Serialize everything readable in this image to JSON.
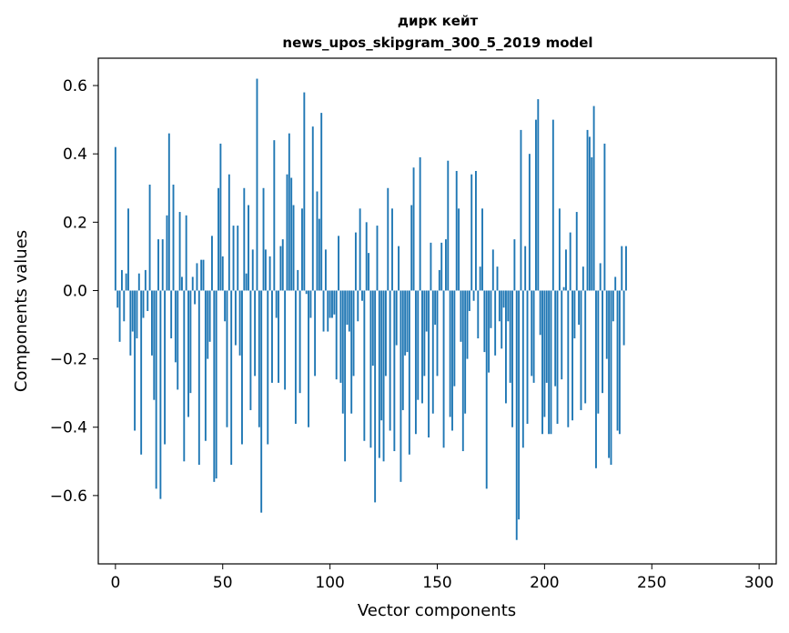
{
  "chart_data": {
    "type": "bar",
    "title_line1": "дирк кейт",
    "title_line2": "news_upos_skipgram_300_5_2019 model",
    "xlabel": "Vector components",
    "ylabel": "Components values",
    "xlim": [
      -8,
      308
    ],
    "ylim": [
      -0.8,
      0.68
    ],
    "x_ticks": [
      0,
      50,
      100,
      150,
      200,
      250,
      300
    ],
    "y_ticks": [
      -0.6,
      -0.4,
      -0.2,
      0.0,
      0.2,
      0.4,
      0.6
    ],
    "y_tick_labels": [
      "−0.6",
      "−0.4",
      "−0.2",
      "0.0",
      "0.2",
      "0.4",
      "0.6"
    ],
    "bar_color": "#1f77b4",
    "values": [
      0.42,
      -0.05,
      -0.15,
      0.06,
      -0.09,
      0.05,
      0.24,
      -0.19,
      -0.12,
      -0.41,
      -0.14,
      0.05,
      -0.48,
      -0.08,
      0.06,
      -0.06,
      0.31,
      -0.19,
      -0.32,
      -0.58,
      0.15,
      -0.61,
      0.15,
      -0.45,
      0.22,
      0.46,
      -0.14,
      0.31,
      -0.21,
      -0.29,
      0.23,
      0.04,
      -0.5,
      0.22,
      -0.37,
      -0.3,
      0.04,
      -0.04,
      0.08,
      -0.51,
      0.09,
      0.09,
      -0.44,
      -0.2,
      -0.15,
      0.16,
      -0.56,
      -0.55,
      0.3,
      0.43,
      0.1,
      -0.09,
      -0.4,
      0.34,
      -0.51,
      0.19,
      -0.16,
      0.19,
      -0.19,
      -0.45,
      0.3,
      0.05,
      0.25,
      -0.35,
      0.12,
      -0.25,
      0.62,
      -0.4,
      -0.65,
      0.3,
      0.12,
      -0.45,
      0.1,
      -0.27,
      0.44,
      -0.08,
      -0.27,
      0.13,
      0.15,
      -0.29,
      0.34,
      0.46,
      0.33,
      0.25,
      -0.39,
      0.06,
      -0.3,
      0.24,
      0.58,
      -0.01,
      -0.4,
      -0.08,
      0.48,
      -0.25,
      0.29,
      0.21,
      0.52,
      -0.12,
      0.12,
      -0.12,
      -0.08,
      -0.08,
      -0.07,
      -0.26,
      0.16,
      -0.27,
      -0.36,
      -0.5,
      -0.1,
      -0.12,
      -0.36,
      -0.25,
      0.17,
      -0.09,
      0.24,
      -0.03,
      -0.44,
      0.2,
      0.11,
      -0.46,
      -0.22,
      -0.62,
      0.19,
      -0.49,
      -0.38,
      -0.5,
      -0.25,
      0.3,
      -0.41,
      0.24,
      -0.47,
      -0.16,
      0.13,
      -0.56,
      -0.35,
      -0.19,
      -0.18,
      -0.48,
      0.25,
      0.36,
      -0.42,
      -0.32,
      0.39,
      -0.33,
      -0.25,
      -0.12,
      -0.43,
      0.14,
      -0.36,
      -0.1,
      -0.25,
      0.06,
      0.14,
      -0.46,
      0.15,
      0.38,
      -0.37,
      -0.41,
      -0.28,
      0.35,
      0.24,
      -0.15,
      -0.47,
      -0.36,
      -0.2,
      -0.06,
      0.34,
      -0.03,
      0.35,
      -0.14,
      0.07,
      0.24,
      -0.18,
      -0.58,
      -0.24,
      -0.11,
      0.12,
      -0.19,
      0.07,
      -0.09,
      -0.17,
      -0.05,
      -0.33,
      -0.09,
      -0.27,
      -0.4,
      0.15,
      -0.73,
      -0.67,
      0.47,
      -0.46,
      0.13,
      -0.39,
      0.4,
      -0.25,
      -0.27,
      0.5,
      0.56,
      -0.13,
      -0.42,
      -0.37,
      -0.27,
      -0.42,
      -0.42,
      0.5,
      -0.28,
      -0.39,
      0.24,
      -0.26,
      0.01,
      0.12,
      -0.4,
      0.17,
      -0.38,
      -0.14,
      0.23,
      -0.1,
      -0.35,
      0.07,
      -0.33,
      0.47,
      0.45,
      0.39,
      0.54,
      -0.52,
      -0.36,
      0.08,
      -0.3,
      0.43,
      -0.2,
      -0.49,
      -0.51,
      -0.09,
      0.04,
      -0.41,
      -0.42,
      0.13,
      -0.16,
      0.13
    ]
  }
}
